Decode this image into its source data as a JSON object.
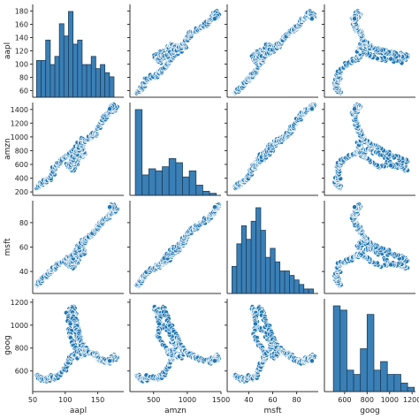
{
  "chart_data": {
    "type": "scatter",
    "subtype": "pairplot",
    "title": "",
    "variables": [
      "aapl",
      "amzn",
      "msft",
      "goog"
    ],
    "colors": {
      "marker": "#1f77b4",
      "marker_edge": "#ffffff",
      "bar": "#3a7fb6",
      "bar_edge": "#1c3f5c",
      "axis": "#333333"
    },
    "grid": false,
    "legend": "none",
    "axes": {
      "aapl": {
        "label": "aapl",
        "range": [
          50,
          190
        ],
        "ticks": [
          60,
          80,
          100,
          120,
          140,
          160,
          180
        ],
        "x_ticks": [
          50,
          100,
          150
        ]
      },
      "amzn": {
        "label": "amzn",
        "range": [
          150,
          1500
        ],
        "ticks": [
          200,
          400,
          600,
          800,
          1000,
          1200,
          1400
        ],
        "x_ticks": [
          500,
          1000,
          1500
        ]
      },
      "msft": {
        "label": "msft",
        "range": [
          22,
          98
        ],
        "ticks": [
          40,
          60,
          80
        ],
        "x_ticks": [
          40,
          60,
          80
        ]
      },
      "goog": {
        "label": "goog",
        "range": [
          420,
          1230
        ],
        "ticks": [
          600,
          800,
          1000,
          1200
        ],
        "x_ticks": [
          600,
          800,
          1000,
          1200
        ]
      }
    },
    "trajectory": {
      "aapl": [
        56,
        60,
        65,
        72,
        78,
        84,
        90,
        100,
        108,
        114,
        118,
        122,
        126,
        118,
        110,
        104,
        108,
        118,
        128,
        126,
        120,
        114,
        110,
        116,
        124,
        132,
        140,
        148,
        150,
        154,
        162,
        166,
        172,
        178,
        176,
        172,
        170
      ],
      "amzn": [
        270,
        290,
        330,
        360,
        420,
        560,
        620,
        700,
        760,
        800,
        850,
        900,
        980,
        620,
        520,
        600,
        560,
        700,
        740,
        820,
        760,
        680,
        640,
        760,
        880,
        950,
        1000,
        1050,
        1120,
        1200,
        1300,
        1340,
        1380,
        1420,
        1440,
        1460,
        1420
      ],
      "msft": [
        28,
        31,
        34,
        37,
        40,
        43,
        46,
        49,
        52,
        55,
        58,
        61,
        65,
        47,
        43,
        46,
        45,
        52,
        55,
        60,
        56,
        52,
        49,
        56,
        62,
        66,
        70,
        74,
        76,
        79,
        83,
        85,
        88,
        91,
        93,
        94,
        92
      ],
      "goog": [
        560,
        540,
        530,
        520,
        555,
        540,
        560,
        620,
        700,
        750,
        740,
        720,
        760,
        1000,
        1150,
        1100,
        900,
        780,
        750,
        820,
        900,
        1100,
        1160,
        1000,
        850,
        780,
        760,
        740,
        720,
        700,
        690,
        680,
        700,
        710,
        730,
        720,
        700
      ]
    },
    "histograms": {
      "aapl": {
        "bin_edges": [
          56,
          63,
          70,
          77,
          84,
          91,
          98,
          105,
          112,
          119,
          126,
          133,
          140,
          147,
          154,
          161,
          168,
          175
        ],
        "counts": [
          9,
          9,
          14,
          8,
          10,
          18,
          15,
          21,
          13,
          14,
          8,
          8,
          10,
          7,
          8,
          6,
          5
        ]
      },
      "amzn": {
        "bin_edges": [
          230,
          330,
          430,
          530,
          630,
          730,
          830,
          930,
          1030,
          1130,
          1230,
          1330,
          1430
        ],
        "counts": [
          42,
          10,
          13,
          12,
          14,
          18,
          16,
          9,
          12,
          5,
          2,
          1
        ]
      },
      "msft": {
        "bin_edges": [
          26,
          30,
          34,
          38,
          42,
          46,
          50,
          54,
          58,
          62,
          66,
          70,
          74,
          78,
          82,
          86,
          90,
          94
        ],
        "counts": [
          6,
          11,
          15,
          12,
          16,
          19,
          14,
          8,
          10,
          7,
          5,
          5,
          4,
          3,
          2,
          1,
          1
        ]
      },
      "goog": {
        "bin_edges": [
          500,
          560,
          620,
          680,
          740,
          800,
          860,
          920,
          980,
          1040,
          1100,
          1160,
          1220
        ],
        "counts": [
          20,
          19,
          5,
          4,
          10,
          18,
          5,
          7,
          4,
          4,
          2,
          1
        ]
      }
    }
  }
}
